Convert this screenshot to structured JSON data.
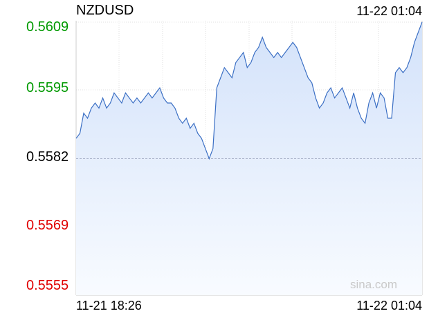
{
  "header": {
    "symbol": "NZDUSD",
    "timestamp": "11-22 01:04"
  },
  "watermark": "sina.com",
  "colors": {
    "up": "#009900",
    "down": "#e00000",
    "neutral": "#000000",
    "line": "#3b6fc4",
    "fill": "#dce8fb"
  },
  "chart_data": {
    "type": "area",
    "yticks": [
      "0.5609",
      "0.5595",
      "0.5582",
      "0.5569",
      "0.5555"
    ],
    "ytick_status": [
      "up",
      "up",
      "neutral",
      "down",
      "down"
    ],
    "x_start_label": "11-21 18:26",
    "x_end_label": "11-22 01:04",
    "previous_close": 0.5582,
    "ylim": [
      0.5555,
      0.5609
    ],
    "grid": true,
    "values": [
      0.5586,
      0.5587,
      0.5591,
      0.559,
      0.5592,
      0.5593,
      0.5592,
      0.5594,
      0.5592,
      0.5593,
      0.5595,
      0.5594,
      0.5593,
      0.5595,
      0.5594,
      0.5593,
      0.5594,
      0.5593,
      0.5594,
      0.5595,
      0.5594,
      0.5595,
      0.5596,
      0.5594,
      0.5593,
      0.5593,
      0.5592,
      0.559,
      0.5589,
      0.559,
      0.5588,
      0.5589,
      0.5587,
      0.5586,
      0.5584,
      0.5582,
      0.5584,
      0.5596,
      0.5598,
      0.56,
      0.5599,
      0.5598,
      0.5601,
      0.5602,
      0.5603,
      0.56,
      0.5601,
      0.5603,
      0.5604,
      0.5606,
      0.5604,
      0.5603,
      0.5602,
      0.5603,
      0.5602,
      0.5603,
      0.5604,
      0.5605,
      0.5604,
      0.5602,
      0.56,
      0.5598,
      0.5597,
      0.5594,
      0.5592,
      0.5593,
      0.5595,
      0.5596,
      0.5594,
      0.5595,
      0.5596,
      0.5594,
      0.5592,
      0.5595,
      0.5592,
      0.559,
      0.5589,
      0.5593,
      0.5595,
      0.5592,
      0.5595,
      0.5594,
      0.559,
      0.559,
      0.5599,
      0.56,
      0.5599,
      0.56,
      0.5602,
      0.5605,
      0.5607,
      0.5609
    ]
  }
}
